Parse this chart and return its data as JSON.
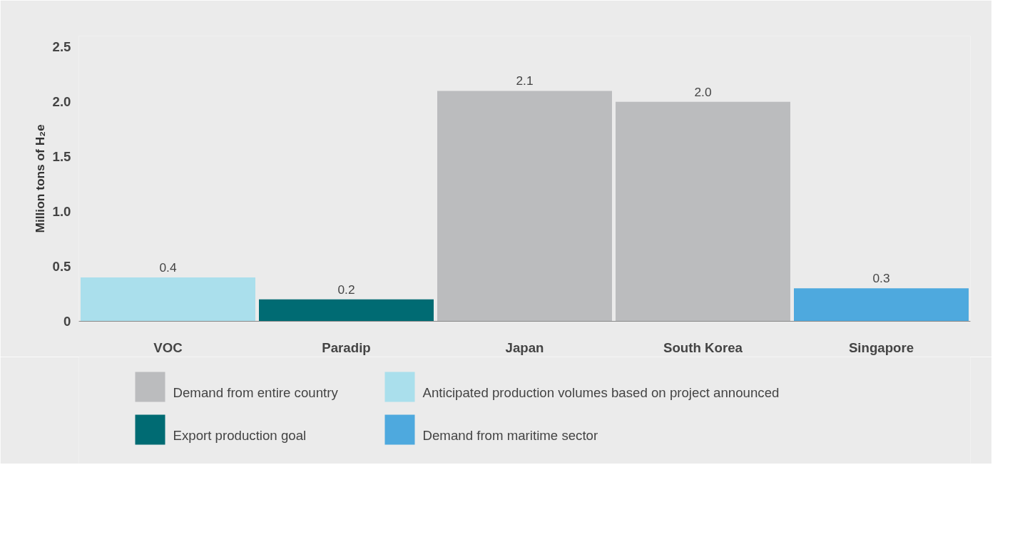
{
  "chart_data": {
    "type": "bar",
    "ylabel": "Million tons of H₂e",
    "categories": [
      "VOC",
      "Paradip",
      "Japan",
      "South Korea",
      "Singapore"
    ],
    "series": [
      {
        "name": "Demand from entire country",
        "color": "#bbbcbe",
        "values": [
          null,
          null,
          2.1,
          2.0,
          null
        ],
        "value_labels": [
          null,
          null,
          "2.1",
          "2.0",
          null
        ]
      },
      {
        "name": "Export production goal",
        "color": "#006b73",
        "values": [
          null,
          0.2,
          null,
          null,
          null
        ],
        "value_labels": [
          null,
          "0.2",
          null,
          null,
          null
        ]
      },
      {
        "name": "Anticipated production volumes based on project announced",
        "color": "#aadfec",
        "values": [
          0.4,
          null,
          null,
          null,
          null
        ],
        "value_labels": [
          "0.4",
          null,
          null,
          null,
          null
        ]
      },
      {
        "name": "Demand from maritime sector",
        "color": "#4ea9de",
        "values": [
          null,
          null,
          null,
          null,
          0.3
        ],
        "value_labels": [
          null,
          null,
          null,
          null,
          "0.3"
        ]
      }
    ],
    "ylim": [
      0,
      2.6
    ],
    "yticks": [
      0,
      0.5,
      {
        "value": 1,
        "label": "1.0"
      },
      1.5,
      {
        "value": 2,
        "label": "2.0"
      },
      2.5
    ],
    "grid": false,
    "legend": "bottom"
  }
}
